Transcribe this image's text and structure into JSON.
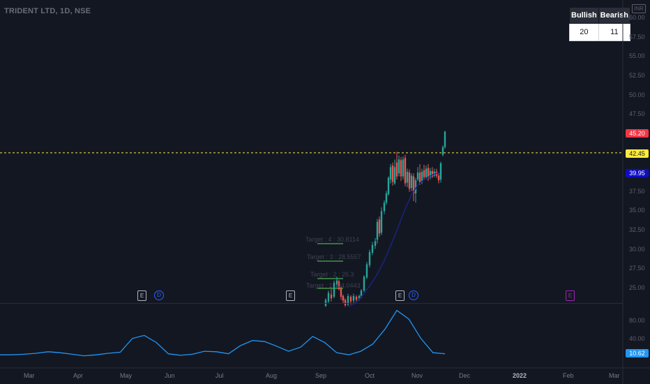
{
  "header": {
    "title": "TRIDENT LTD, 1D, NSE",
    "currency": "INR"
  },
  "stats": {
    "bullish_label": "Bullish",
    "bearish_label": "Bearish",
    "bullish_value": "20",
    "bearish_value": "11"
  },
  "price_axis": {
    "ticks": [
      "60.00",
      "57.50",
      "55.00",
      "52.50",
      "50.00",
      "47.50",
      "45.00",
      "42.50",
      "40.00",
      "37.50",
      "35.00",
      "32.50",
      "30.00",
      "27.50",
      "25.00"
    ]
  },
  "price_badges": {
    "last": "45.20",
    "dashed_level": "42.45",
    "ma_level": "39.95"
  },
  "oscillator_axis": {
    "ticks": [
      "80.00",
      "40.00"
    ],
    "current": "10.62"
  },
  "time_axis": {
    "labels": [
      "Mar",
      "Apr",
      "May",
      "Jun",
      "Jul",
      "Aug",
      "Sep",
      "Oct",
      "Nov",
      "Dec",
      "2022",
      "Feb",
      "Mar"
    ]
  },
  "targets": [
    "Target : 4 : 30.8114",
    "Target : 3 : 28.5557",
    "Target : 2 : 26.3",
    "Target : 1 : 24.0443"
  ],
  "event_markers": [
    "E",
    "D",
    "E",
    "E",
    "D",
    "E"
  ],
  "colors": {
    "bull": "#26a69a",
    "bear": "#ef5350",
    "ma": "#1a237e",
    "osc": "#2196f3",
    "last_badge": "#f23645",
    "level_badge": "#ffeb3b",
    "ma_badge": "#0d0dc4",
    "dashed": "#ffeb3b",
    "target_line": "#4caf50"
  },
  "chart_data": [
    {
      "type": "candlestick",
      "title": "TRIDENT LTD, 1D, NSE",
      "ylim": [
        22.5,
        61.5
      ],
      "x": [
        "Sep",
        "Oct",
        "Nov"
      ],
      "last": 45.2,
      "level": 42.45,
      "ma_last": 39.95,
      "candles_visible_range": [
        22.5,
        45.2
      ]
    },
    {
      "type": "line",
      "ylim": [
        0,
        100
      ],
      "series": [
        {
          "values": [
            8,
            8,
            9,
            11,
            14,
            12,
            9,
            6,
            8,
            11,
            13,
            40,
            46,
            32,
            10,
            7,
            9,
            15,
            14,
            10,
            26,
            36,
            34,
            25,
            15,
            23,
            44,
            32,
            12,
            8,
            15,
            29,
            58,
            95,
            78,
            40,
            12,
            10
          ]
        }
      ],
      "last": 10.62
    }
  ]
}
